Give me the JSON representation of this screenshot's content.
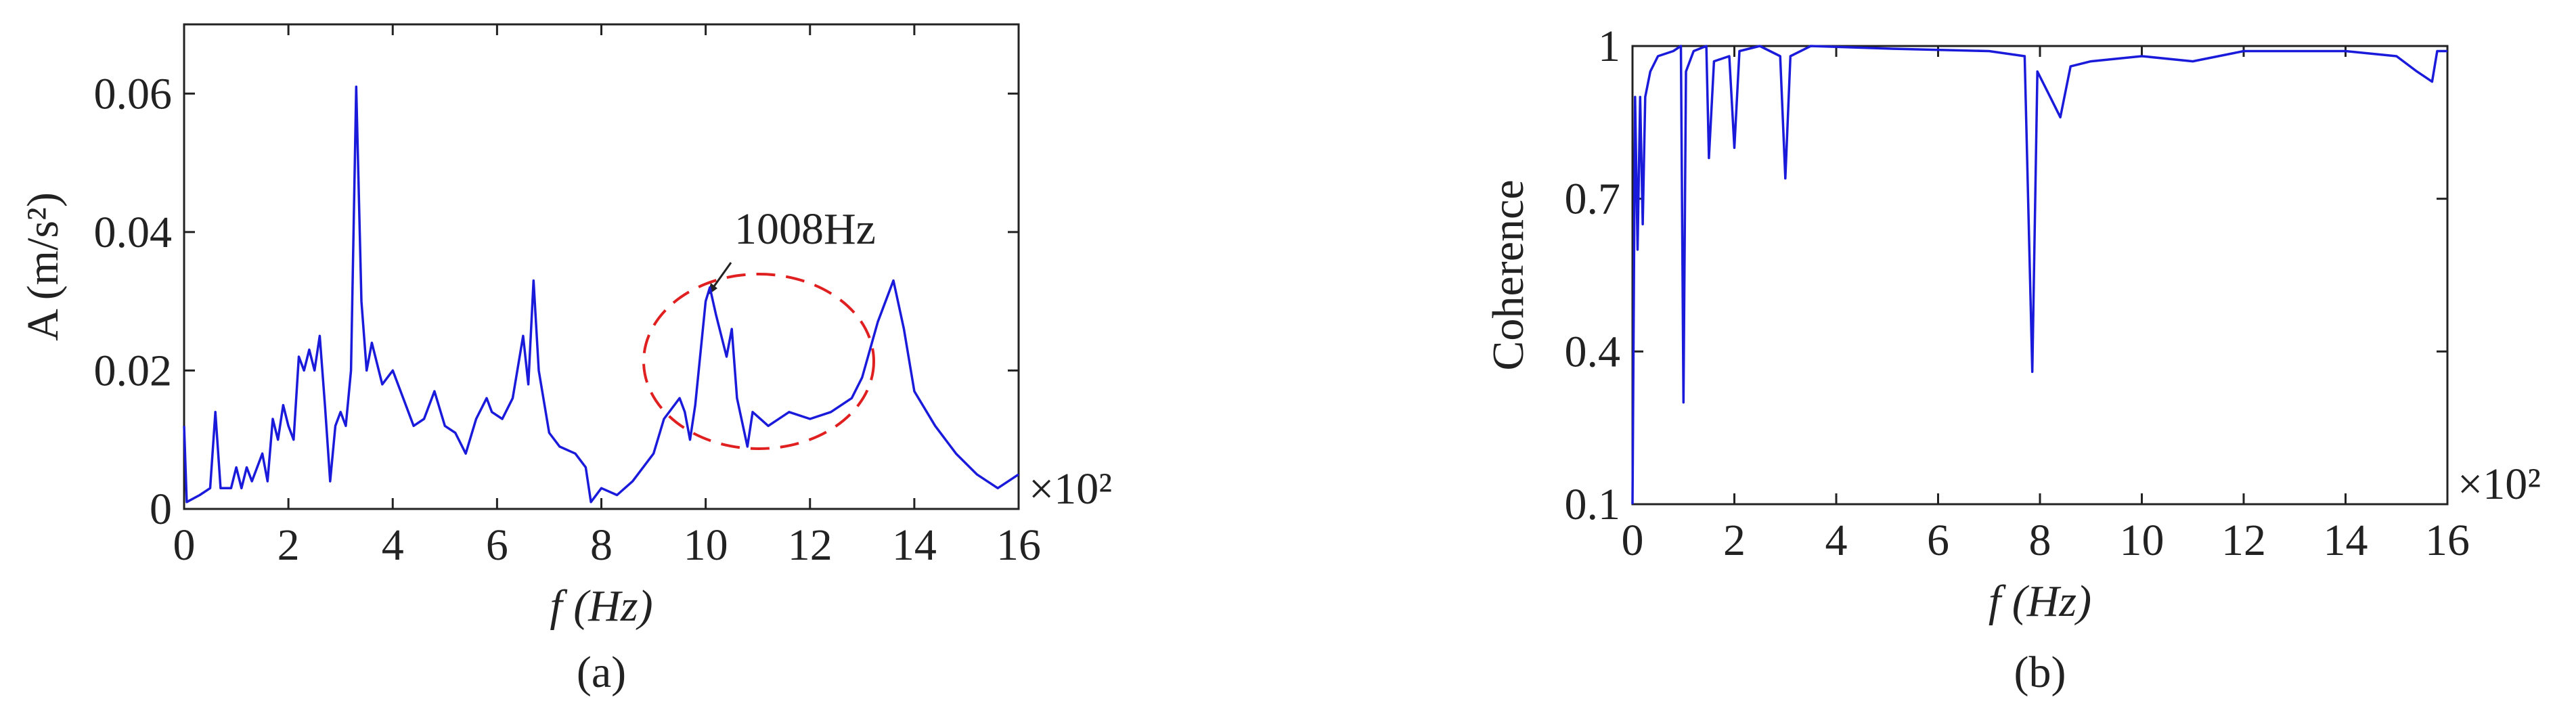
{
  "chart_data": [
    {
      "type": "line",
      "x_label": "f (Hz)",
      "y_label": "A (m/s²)",
      "x_multiplier": "×10²",
      "subplot_label": "(a)",
      "annotation": "1008Hz",
      "xlim": [
        0,
        16
      ],
      "xticks": [
        0,
        2,
        4,
        6,
        8,
        10,
        12,
        14,
        16
      ],
      "ylim": [
        0,
        0.07
      ],
      "yticks": [
        0,
        0.02,
        0.04,
        0.06
      ],
      "series": [
        {
          "color": "#1a1adb",
          "x": [
            0,
            0.05,
            0.3,
            0.5,
            0.6,
            0.7,
            0.9,
            1.0,
            1.1,
            1.2,
            1.3,
            1.5,
            1.6,
            1.7,
            1.8,
            1.9,
            2.0,
            2.1,
            2.2,
            2.3,
            2.4,
            2.5,
            2.6,
            2.7,
            2.8,
            2.9,
            3.0,
            3.1,
            3.2,
            3.3,
            3.4,
            3.5,
            3.6,
            3.8,
            4.0,
            4.2,
            4.4,
            4.6,
            4.8,
            5.0,
            5.2,
            5.4,
            5.6,
            5.8,
            5.9,
            6.1,
            6.3,
            6.5,
            6.6,
            6.7,
            6.8,
            7.0,
            7.2,
            7.5,
            7.7,
            7.8,
            8.0,
            8.3,
            8.6,
            9.0,
            9.2,
            9.5,
            9.6,
            9.7,
            9.8,
            10.0,
            10.08,
            10.2,
            10.4,
            10.5,
            10.6,
            10.8,
            10.9,
            11.2,
            11.6,
            12.0,
            12.4,
            12.8,
            13.0,
            13.3,
            13.6,
            13.8,
            14.0,
            14.4,
            14.8,
            15.2,
            15.6,
            16.0
          ],
          "values": [
            0.012,
            0.001,
            0.002,
            0.003,
            0.014,
            0.003,
            0.003,
            0.006,
            0.003,
            0.006,
            0.004,
            0.008,
            0.004,
            0.013,
            0.01,
            0.015,
            0.012,
            0.01,
            0.022,
            0.02,
            0.023,
            0.02,
            0.025,
            0.015,
            0.004,
            0.012,
            0.014,
            0.012,
            0.02,
            0.061,
            0.03,
            0.02,
            0.024,
            0.018,
            0.02,
            0.016,
            0.012,
            0.013,
            0.017,
            0.012,
            0.011,
            0.008,
            0.013,
            0.016,
            0.014,
            0.013,
            0.016,
            0.025,
            0.018,
            0.033,
            0.02,
            0.011,
            0.009,
            0.008,
            0.006,
            0.001,
            0.003,
            0.002,
            0.004,
            0.008,
            0.013,
            0.016,
            0.014,
            0.01,
            0.015,
            0.03,
            0.032,
            0.028,
            0.022,
            0.026,
            0.016,
            0.009,
            0.014,
            0.012,
            0.014,
            0.013,
            0.014,
            0.016,
            0.019,
            0.027,
            0.033,
            0.026,
            0.017,
            0.012,
            0.008,
            0.005,
            0.003,
            0.005
          ]
        }
      ]
    },
    {
      "type": "line",
      "x_label": "f (Hz)",
      "y_label": "Coherence",
      "x_multiplier": "×10²",
      "subplot_label": "(b)",
      "xlim": [
        0,
        16
      ],
      "xticks": [
        0,
        2,
        4,
        6,
        8,
        10,
        12,
        14,
        16
      ],
      "ylim": [
        0.1,
        1
      ],
      "yticks": [
        0.1,
        0.4,
        0.7,
        1
      ],
      "series": [
        {
          "color": "#1a1adb",
          "x": [
            0,
            0.05,
            0.1,
            0.15,
            0.2,
            0.25,
            0.35,
            0.5,
            0.8,
            0.95,
            1.0,
            1.05,
            1.2,
            1.45,
            1.5,
            1.6,
            1.9,
            2.0,
            2.1,
            2.5,
            2.9,
            3.0,
            3.1,
            3.5,
            5,
            7,
            7.7,
            7.85,
            7.95,
            8.2,
            8.4,
            8.6,
            9.0,
            10,
            11,
            12,
            14,
            15,
            15.4,
            15.7,
            15.8,
            16
          ],
          "values": [
            0.1,
            0.9,
            0.6,
            0.9,
            0.65,
            0.9,
            0.95,
            0.98,
            0.99,
            1,
            0.3,
            0.95,
            0.99,
            1,
            0.78,
            0.97,
            0.98,
            0.8,
            0.99,
            1,
            0.98,
            0.74,
            0.98,
            1,
            0.995,
            0.99,
            0.98,
            0.36,
            0.95,
            0.9,
            0.86,
            0.96,
            0.97,
            0.98,
            0.97,
            0.99,
            0.99,
            0.98,
            0.95,
            0.93,
            0.99,
            0.99
          ]
        }
      ]
    }
  ]
}
